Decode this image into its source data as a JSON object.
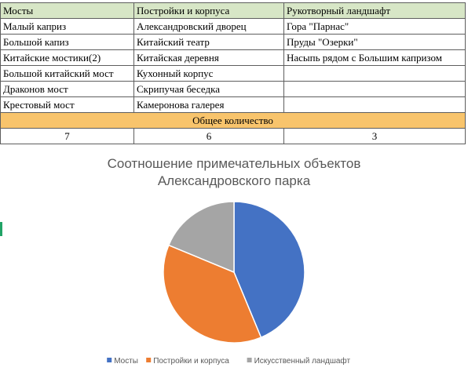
{
  "table": {
    "headers": [
      "Мосты",
      "Постройки и корпуса",
      "Рукотворный ландшафт"
    ],
    "rows": [
      [
        "Малый каприз",
        "Александровский дворец",
        "Гора \"Парнас\""
      ],
      [
        "Большой капиз",
        "Китайский театр",
        "Пруды \"Озерки\""
      ],
      [
        "Китайские мостики(2)",
        "Китайская деревня",
        "Насыпь рядом с Большим капризом"
      ],
      [
        "Большой китайский мост",
        "Кухонный корпус",
        ""
      ],
      [
        "Драконов мост",
        "Скрипучая беседка",
        ""
      ],
      [
        "Крестовый мост",
        "Камеронова галерея",
        ""
      ]
    ],
    "total_label": "Общее количество",
    "counts": [
      "7",
      "6",
      "3"
    ]
  },
  "chart_data": {
    "type": "pie",
    "title": "Соотношение примечательных объектов Александровского парка",
    "title_lines": [
      "Соотношение примечательных объектов",
      "Александровского парка"
    ],
    "categories": [
      "Мосты",
      "Постройки и корпуса",
      "Искусственный ландшафт"
    ],
    "values": [
      7,
      6,
      3
    ],
    "colors": [
      "#4472c4",
      "#ed7d31",
      "#a5a5a5"
    ],
    "legend_position": "bottom",
    "start_angle_deg": 0,
    "direction": "clockwise"
  }
}
